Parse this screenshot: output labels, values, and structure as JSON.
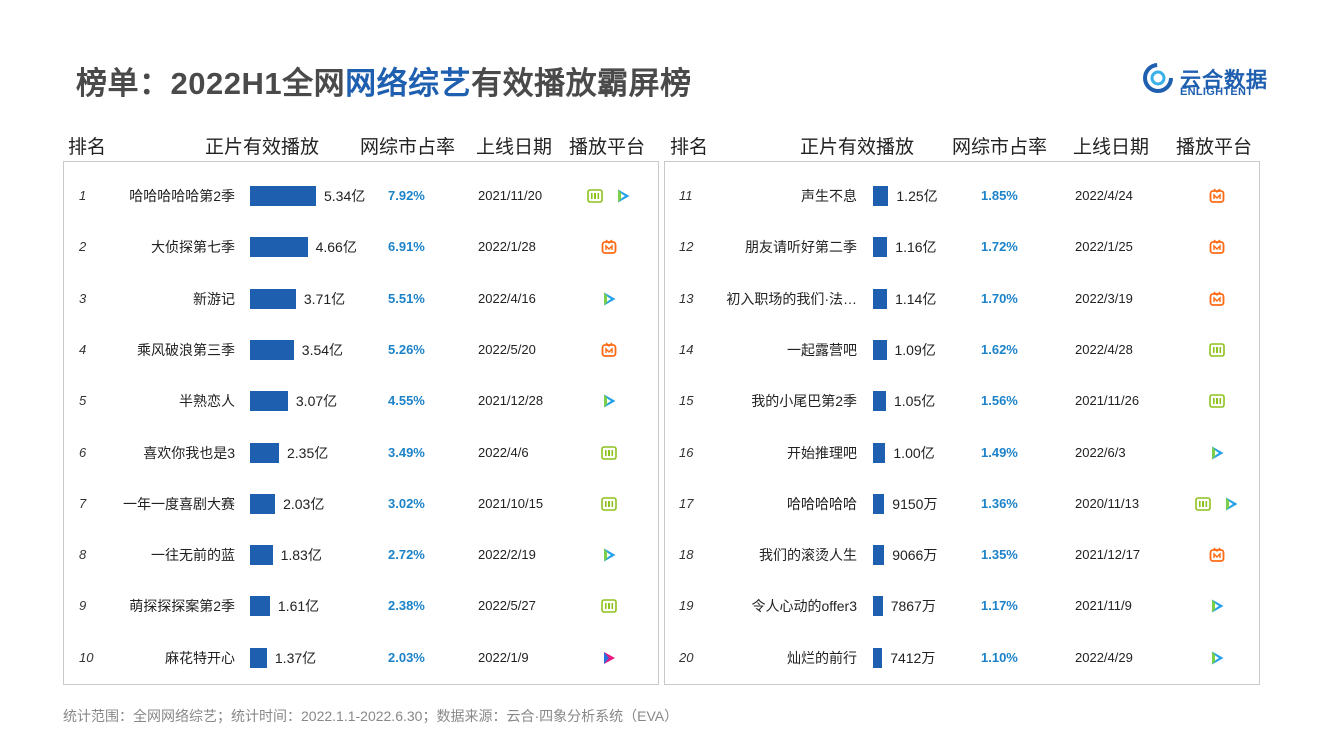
{
  "title": {
    "prefix": "榜单：2022H1全网",
    "highlight": "网络综艺",
    "suffix": "有效播放霸屏榜"
  },
  "logo": {
    "cn": "云合数据",
    "en": "ENLIGHTENT"
  },
  "headers": {
    "rank": "排名",
    "views": "正片有效播放",
    "share": "网综市占率",
    "date": "上线日期",
    "platform": "播放平台"
  },
  "footer": "统计范围：全网网络综艺；统计时间：2022.1.1-2022.6.30；数据来源：云合·四象分析系统（EVA）",
  "colors": {
    "accent": "#1f5fb0",
    "share": "#1d83c9",
    "iqiyi": "#8dc21f",
    "mango": "#ff6a13",
    "tencent": "#21a0e8",
    "youku": "#e8187e"
  },
  "chart_data": {
    "type": "table",
    "title": "榜单：2022H1全网网络综艺有效播放霸屏榜",
    "columns": [
      "排名",
      "正片有效播放",
      "网综市占率",
      "上线日期",
      "播放平台"
    ],
    "rows": [
      {
        "rank": "1",
        "name": "哈哈哈哈哈第2季",
        "views": 53400,
        "views_label": "5.34亿",
        "share": "7.92%",
        "date": "2021/11/20",
        "platforms": [
          "iqiyi-icon",
          "tencent-video-icon"
        ]
      },
      {
        "rank": "2",
        "name": "大侦探第七季",
        "views": 46600,
        "views_label": "4.66亿",
        "share": "6.91%",
        "date": "2022/1/28",
        "platforms": [
          "mango-tv-icon"
        ]
      },
      {
        "rank": "3",
        "name": "新游记",
        "views": 37100,
        "views_label": "3.71亿",
        "share": "5.51%",
        "date": "2022/4/16",
        "platforms": [
          "tencent-video-icon"
        ]
      },
      {
        "rank": "4",
        "name": "乘风破浪第三季",
        "views": 35400,
        "views_label": "3.54亿",
        "share": "5.26%",
        "date": "2022/5/20",
        "platforms": [
          "mango-tv-icon"
        ]
      },
      {
        "rank": "5",
        "name": "半熟恋人",
        "views": 30700,
        "views_label": "3.07亿",
        "share": "4.55%",
        "date": "2021/12/28",
        "platforms": [
          "tencent-video-icon"
        ]
      },
      {
        "rank": "6",
        "name": "喜欢你我也是3",
        "views": 23500,
        "views_label": "2.35亿",
        "share": "3.49%",
        "date": "2022/4/6",
        "platforms": [
          "iqiyi-icon"
        ]
      },
      {
        "rank": "7",
        "name": "一年一度喜剧大赛",
        "views": 20300,
        "views_label": "2.03亿",
        "share": "3.02%",
        "date": "2021/10/15",
        "platforms": [
          "iqiyi-icon"
        ]
      },
      {
        "rank": "8",
        "name": "一往无前的蓝",
        "views": 18300,
        "views_label": "1.83亿",
        "share": "2.72%",
        "date": "2022/2/19",
        "platforms": [
          "tencent-video-icon"
        ]
      },
      {
        "rank": "9",
        "name": "萌探探探案第2季",
        "views": 16100,
        "views_label": "1.61亿",
        "share": "2.38%",
        "date": "2022/5/27",
        "platforms": [
          "iqiyi-icon"
        ]
      },
      {
        "rank": "10",
        "name": "麻花特开心",
        "views": 13700,
        "views_label": "1.37亿",
        "share": "2.03%",
        "date": "2022/1/9",
        "platforms": [
          "youku-icon"
        ]
      },
      {
        "rank": "11",
        "name": "声生不息",
        "views": 12500,
        "views_label": "1.25亿",
        "share": "1.85%",
        "date": "2022/4/24",
        "platforms": [
          "mango-tv-icon"
        ]
      },
      {
        "rank": "12",
        "name": "朋友请听好第二季",
        "views": 11600,
        "views_label": "1.16亿",
        "share": "1.72%",
        "date": "2022/1/25",
        "platforms": [
          "mango-tv-icon"
        ]
      },
      {
        "rank": "13",
        "name": "初入职场的我们·法…",
        "views": 11400,
        "views_label": "1.14亿",
        "share": "1.70%",
        "date": "2022/3/19",
        "platforms": [
          "mango-tv-icon"
        ]
      },
      {
        "rank": "14",
        "name": "一起露营吧",
        "views": 10900,
        "views_label": "1.09亿",
        "share": "1.62%",
        "date": "2022/4/28",
        "platforms": [
          "iqiyi-icon"
        ]
      },
      {
        "rank": "15",
        "name": "我的小尾巴第2季",
        "views": 10500,
        "views_label": "1.05亿",
        "share": "1.56%",
        "date": "2021/11/26",
        "platforms": [
          "iqiyi-icon"
        ]
      },
      {
        "rank": "16",
        "name": "开始推理吧",
        "views": 10000,
        "views_label": "1.00亿",
        "share": "1.49%",
        "date": "2022/6/3",
        "platforms": [
          "tencent-video-icon"
        ]
      },
      {
        "rank": "17",
        "name": "哈哈哈哈哈",
        "views": 9150,
        "views_label": "9150万",
        "share": "1.36%",
        "date": "2020/11/13",
        "platforms": [
          "iqiyi-icon",
          "tencent-video-icon"
        ]
      },
      {
        "rank": "18",
        "name": "我们的滚烫人生",
        "views": 9066,
        "views_label": "9066万",
        "share": "1.35%",
        "date": "2021/12/17",
        "platforms": [
          "mango-tv-icon"
        ]
      },
      {
        "rank": "19",
        "name": "令人心动的offer3",
        "views": 7867,
        "views_label": "7867万",
        "share": "1.17%",
        "date": "2021/11/9",
        "platforms": [
          "tencent-video-icon"
        ]
      },
      {
        "rank": "20",
        "name": "灿烂的前行",
        "views": 7412,
        "views_label": "7412万",
        "share": "1.10%",
        "date": "2022/4/29",
        "platforms": [
          "tencent-video-icon"
        ]
      }
    ],
    "views_unit": "万",
    "views_max": 53400
  }
}
